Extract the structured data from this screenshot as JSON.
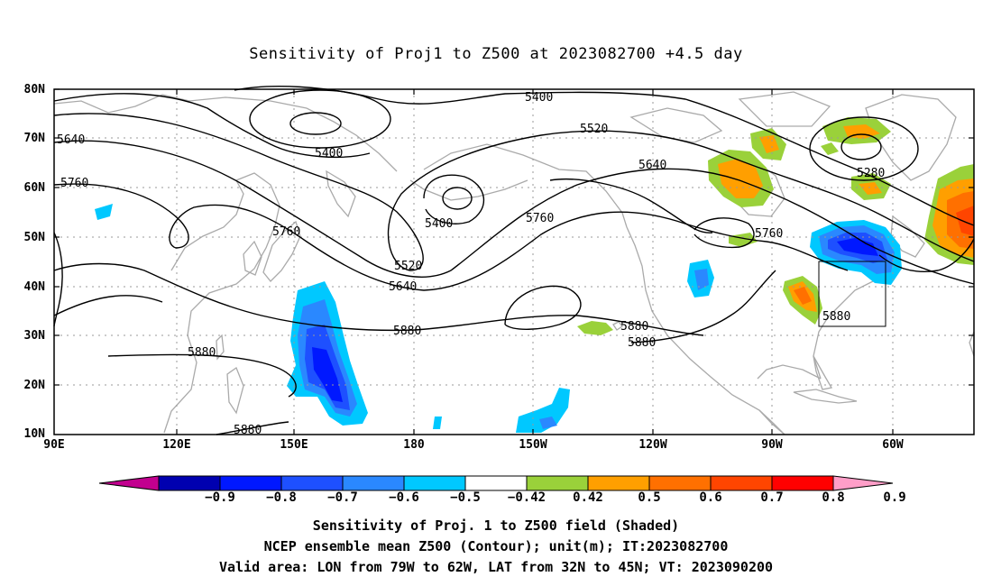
{
  "title": "Sensitivity of Proj1 to Z500 at 2023082700 +4.5 day",
  "lat_labels": [
    "80N",
    "70N",
    "60N",
    "50N",
    "40N",
    "30N",
    "20N",
    "10N"
  ],
  "lon_labels": [
    "90E",
    "120E",
    "150E",
    "180",
    "150W",
    "120W",
    "90W",
    "60W"
  ],
  "contour_labels": [
    {
      "text": "5400"
    },
    {
      "text": "5520"
    },
    {
      "text": "5640"
    },
    {
      "text": "5400"
    },
    {
      "text": "5280"
    },
    {
      "text": "5640"
    },
    {
      "text": "5760"
    },
    {
      "text": "5400"
    },
    {
      "text": "5760"
    },
    {
      "text": "5760"
    },
    {
      "text": "5520"
    },
    {
      "text": "5640"
    },
    {
      "text": "5880"
    },
    {
      "text": "5880"
    },
    {
      "text": "5880"
    },
    {
      "text": "5880"
    },
    {
      "text": "5880"
    },
    {
      "text": "5760"
    },
    {
      "text": "5880"
    }
  ],
  "colorbar": {
    "colors": [
      "#c2008f",
      "#0000b0",
      "#0018ff",
      "#1e50ff",
      "#2a88ff",
      "#00c8ff",
      "#ffffff",
      "#9ad13a",
      "#ff9f00",
      "#ff7000",
      "#ff4500",
      "#ff0000",
      "#ff9ec8"
    ],
    "labels": [
      "-0.9",
      "-0.8",
      "-0.7",
      "-0.6",
      "-0.5",
      "-0.42",
      "0.42",
      "0.5",
      "0.6",
      "0.7",
      "0.8",
      "0.9"
    ]
  },
  "captions": [
    "Sensitivity of Proj. 1 to Z500 field (Shaded)",
    "NCEP ensemble mean Z500 (Contour); unit(m); IT:2023082700",
    "Valid area: LON from 79W to 62W, LAT from 32N to 45N; VT: 2023090200"
  ]
}
